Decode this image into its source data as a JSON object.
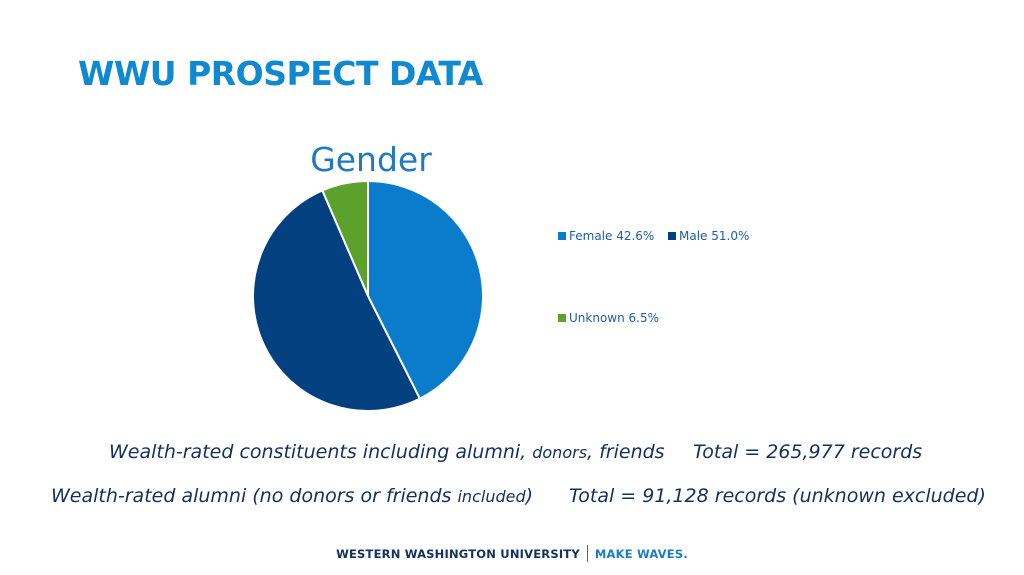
{
  "slide": {
    "title": "WWU PROSPECT DATA"
  },
  "chart_data": {
    "type": "pie",
    "title": "Gender",
    "slices": [
      {
        "label": "Female 42.6%",
        "value": 42.6,
        "color": "#0b7bcb"
      },
      {
        "label": "Male 51.0%",
        "value": 51.0,
        "color": "#02407f"
      },
      {
        "label": "Unknown 6.5%",
        "value": 6.5,
        "color": "#5ca12b"
      }
    ],
    "legend_position": "right"
  },
  "captions": {
    "line1_left_main": "Wealth-rated constituents including alumni, ",
    "line1_left_small": "donors",
    "line1_left_end": ", friends",
    "line1_right": "Total = 265,977 records",
    "line2_left_main": "Wealth-rated alumni (no donors or friends ",
    "line2_left_small": "included",
    "line2_left_end": ")",
    "line2_right": "Total = 91,128 records (unknown excluded)"
  },
  "footer": {
    "left": "WESTERN WASHINGTON UNIVERSITY",
    "right": "MAKE WAVES."
  }
}
